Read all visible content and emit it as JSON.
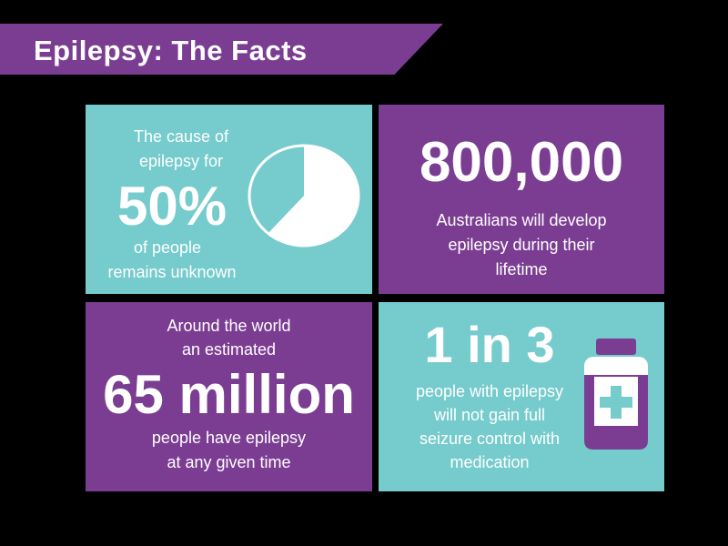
{
  "header": {
    "title": "Epilepsy: The Facts"
  },
  "colors": {
    "teal": "#76cbcd",
    "purple": "#7b3d92",
    "text": "#ffffff",
    "background": "#000000"
  },
  "facts": [
    {
      "lines_top": [
        "The cause of",
        "epilepsy for"
      ],
      "highlight": "50%",
      "lines_bottom": [
        "of people",
        "remains unknown"
      ],
      "icon": "pie-chart-icon"
    },
    {
      "highlight": "800,000",
      "lines_bottom": [
        "Australians will develop",
        "epilepsy during their",
        "lifetime"
      ]
    },
    {
      "lines_top": [
        "Around the world",
        "an estimated"
      ],
      "highlight": "65 million",
      "lines_bottom": [
        "people have epilepsy",
        "at any given time"
      ]
    },
    {
      "highlight": "1 in 3",
      "lines_bottom": [
        "people with epilepsy",
        "will not gain full",
        "seizure control with",
        "medication"
      ],
      "icon": "medicine-bottle-icon"
    }
  ]
}
